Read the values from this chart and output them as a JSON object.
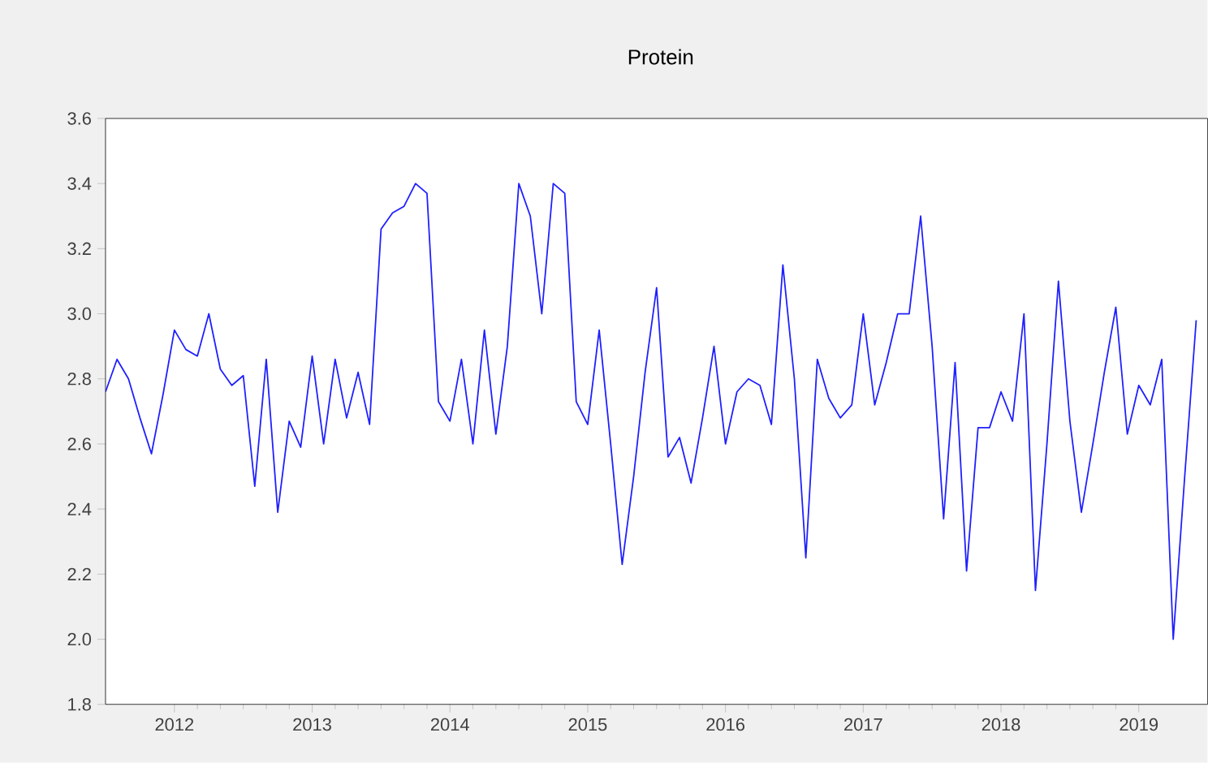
{
  "chart_data": {
    "type": "line",
    "title": "Protein",
    "x": [
      "2012-01",
      "2012-02",
      "2012-03",
      "2012-04",
      "2012-05",
      "2012-06",
      "2012-07",
      "2012-08",
      "2012-09",
      "2012-10",
      "2012-11",
      "2012-12",
      "2013-01",
      "2013-02",
      "2013-03",
      "2013-04",
      "2013-05",
      "2013-06",
      "2013-07",
      "2013-08",
      "2013-09",
      "2013-10",
      "2013-11",
      "2013-12",
      "2014-01",
      "2014-02",
      "2014-03",
      "2014-04",
      "2014-05",
      "2014-06",
      "2014-07",
      "2014-08",
      "2014-09",
      "2014-10",
      "2014-11",
      "2014-12",
      "2015-01",
      "2015-02",
      "2015-03",
      "2015-04",
      "2015-05",
      "2015-06",
      "2015-07",
      "2015-08",
      "2015-09",
      "2015-10",
      "2015-11",
      "2015-12",
      "2016-01",
      "2016-02",
      "2016-03",
      "2016-04",
      "2016-05",
      "2016-06",
      "2016-07",
      "2016-08",
      "2016-09",
      "2016-10",
      "2016-11",
      "2016-12",
      "2017-01",
      "2017-02",
      "2017-03",
      "2017-04",
      "2017-05",
      "2017-06",
      "2017-07",
      "2017-08",
      "2017-09",
      "2017-10",
      "2017-11",
      "2017-12",
      "2018-01",
      "2018-02",
      "2018-03",
      "2018-04",
      "2018-05",
      "2018-06",
      "2018-07",
      "2018-08",
      "2018-09",
      "2018-10",
      "2018-11",
      "2018-12",
      "2019-01",
      "2019-02",
      "2019-03",
      "2019-04",
      "2019-05",
      "2019-06",
      "2019-07",
      "2019-08",
      "2019-09",
      "2019-10",
      "2019-11",
      "2019-12"
    ],
    "series": [
      {
        "color": "#2020ff",
        "values": [
          2.76,
          2.86,
          2.8,
          2.68,
          2.57,
          2.75,
          2.95,
          2.89,
          2.87,
          3.0,
          2.83,
          2.78,
          2.81,
          2.47,
          2.86,
          2.39,
          2.67,
          2.59,
          2.87,
          2.6,
          2.86,
          2.68,
          2.82,
          2.66,
          3.26,
          3.31,
          3.33,
          3.4,
          3.37,
          2.73,
          2.67,
          2.86,
          2.6,
          2.95,
          2.63,
          2.9,
          3.4,
          3.3,
          3.0,
          3.4,
          3.37,
          2.73,
          2.66,
          2.95,
          2.6,
          2.23,
          2.5,
          2.82,
          3.08,
          2.56,
          2.62,
          2.48,
          2.68,
          2.9,
          2.6,
          2.76,
          2.8,
          2.78,
          2.66,
          3.15,
          2.8,
          2.25,
          2.86,
          2.74,
          2.68,
          2.72,
          3.0,
          2.72,
          2.85,
          3.0,
          3.0,
          3.3,
          2.9,
          2.37,
          2.85,
          2.21,
          2.65,
          2.65,
          2.76,
          2.67,
          3.0,
          2.15,
          2.6,
          3.1,
          2.67,
          2.39,
          2.6,
          2.82,
          3.02,
          2.63,
          2.78,
          2.72,
          2.86,
          2.0,
          2.5,
          2.98
        ]
      }
    ],
    "xlim": [
      "2012-01",
      "2020-01"
    ],
    "xticks": [
      {
        "value": "2012-07",
        "label": "2012"
      },
      {
        "value": "2013-07",
        "label": "2013"
      },
      {
        "value": "2014-07",
        "label": "2014"
      },
      {
        "value": "2015-07",
        "label": "2015"
      },
      {
        "value": "2016-07",
        "label": "2016"
      },
      {
        "value": "2017-07",
        "label": "2017"
      },
      {
        "value": "2018-07",
        "label": "2018"
      },
      {
        "value": "2019-07",
        "label": "2019"
      }
    ],
    "ylim": [
      1.8,
      3.6
    ],
    "yticks": [
      {
        "value": 1.8,
        "label": "1.8"
      },
      {
        "value": 2.0,
        "label": "2.0"
      },
      {
        "value": 2.2,
        "label": "2.2"
      },
      {
        "value": 2.4,
        "label": "2.4"
      },
      {
        "value": 2.6,
        "label": "2.6"
      },
      {
        "value": 2.8,
        "label": "2.8"
      },
      {
        "value": 3.0,
        "label": "3.0"
      },
      {
        "value": 3.2,
        "label": "3.2"
      },
      {
        "value": 3.4,
        "label": "3.4"
      },
      {
        "value": 3.6,
        "label": "3.6"
      }
    ],
    "grid": false,
    "marker": "none",
    "line_style": "solid"
  }
}
